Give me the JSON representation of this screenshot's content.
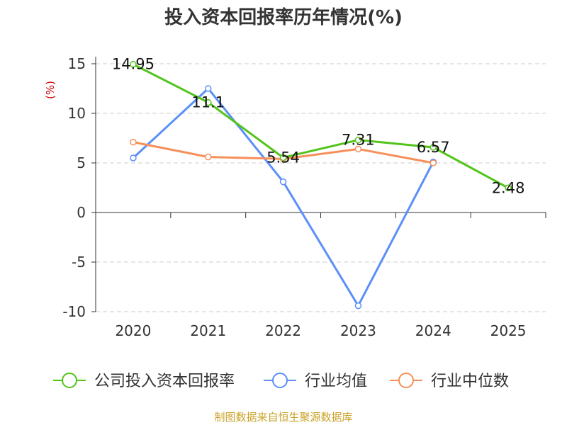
{
  "chart_data": {
    "type": "line",
    "title": "投入资本回报率历年情况(%)",
    "ylabel": "(%)",
    "categories": [
      "2020",
      "2021",
      "2022",
      "2023",
      "2024",
      "2025"
    ],
    "ylim": [
      -10,
      15
    ],
    "yticks": [
      "15",
      "10",
      "5",
      "0",
      "-5",
      "-10"
    ],
    "grid": true,
    "legend_position": "bottom",
    "series": [
      {
        "name": "公司投入资本回报率",
        "color": "#52c41a",
        "values": [
          14.95,
          11.1,
          5.54,
          7.31,
          6.57,
          2.48
        ],
        "labels": [
          "14.95",
          "11.1",
          "5.54",
          "7.31",
          "6.57",
          "2.48"
        ]
      },
      {
        "name": "行业均值",
        "color": "#5b8ff9",
        "values": [
          5.5,
          12.5,
          3.1,
          -9.4,
          5.1,
          null
        ]
      },
      {
        "name": "行业中位数",
        "color": "#f6905b",
        "values": [
          7.1,
          5.6,
          5.4,
          6.4,
          5.0,
          null
        ]
      }
    ]
  },
  "source": "制图数据来自恒生聚源数据库",
  "colors": {
    "title": "#333333",
    "source": "#c9a227",
    "ylabel": "#cc0000",
    "axis": "#333333",
    "grid": "#cccccc"
  }
}
